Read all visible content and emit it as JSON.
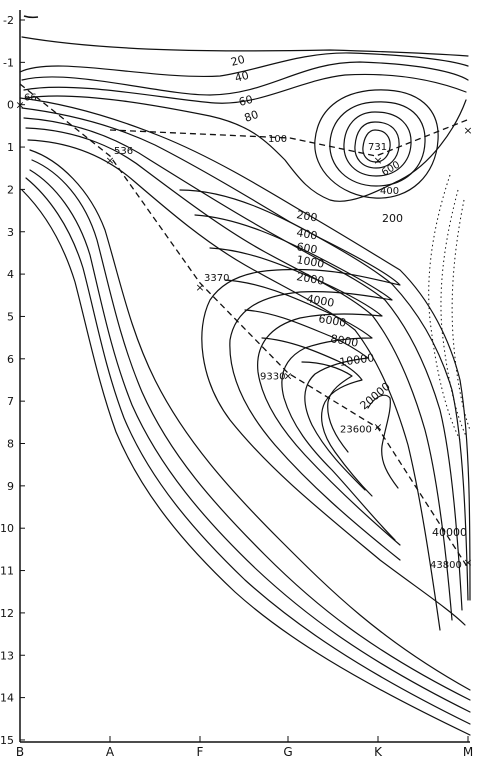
{
  "diagram": {
    "y_ticks": [
      "-2",
      "-1",
      "0",
      "1",
      "2",
      "3",
      "4",
      "5",
      "6",
      "7",
      "8",
      "9",
      "10",
      "11",
      "12",
      "13",
      "14",
      "15"
    ],
    "x_ticks": [
      "B",
      "A",
      "F",
      "G",
      "K",
      "M"
    ],
    "contour_labels": [
      "20",
      "40",
      "60",
      "80",
      "100",
      "200",
      "400",
      "600",
      "1000",
      "2000",
      "4000",
      "6000",
      "8000",
      "10000",
      "20000",
      "40000",
      "600",
      "400",
      "200"
    ],
    "peaks": [
      {
        "label": "66",
        "x_class": "B",
        "mag": 0.0
      },
      {
        "label": "536",
        "x_class": "A",
        "mag": 1.3
      },
      {
        "label": "3370",
        "x_class": "F",
        "mag": 4.3
      },
      {
        "label": "9330",
        "x_class": "G",
        "mag": 6.4
      },
      {
        "label": "23600",
        "x_class": "K",
        "mag": 7.6
      },
      {
        "label": "43800",
        "x_class": "M",
        "mag": 10.8
      },
      {
        "label": "731",
        "x_class": "K",
        "mag": 1.3
      },
      {
        "label": "",
        "x_class": "M",
        "mag": 0.6
      }
    ]
  }
}
